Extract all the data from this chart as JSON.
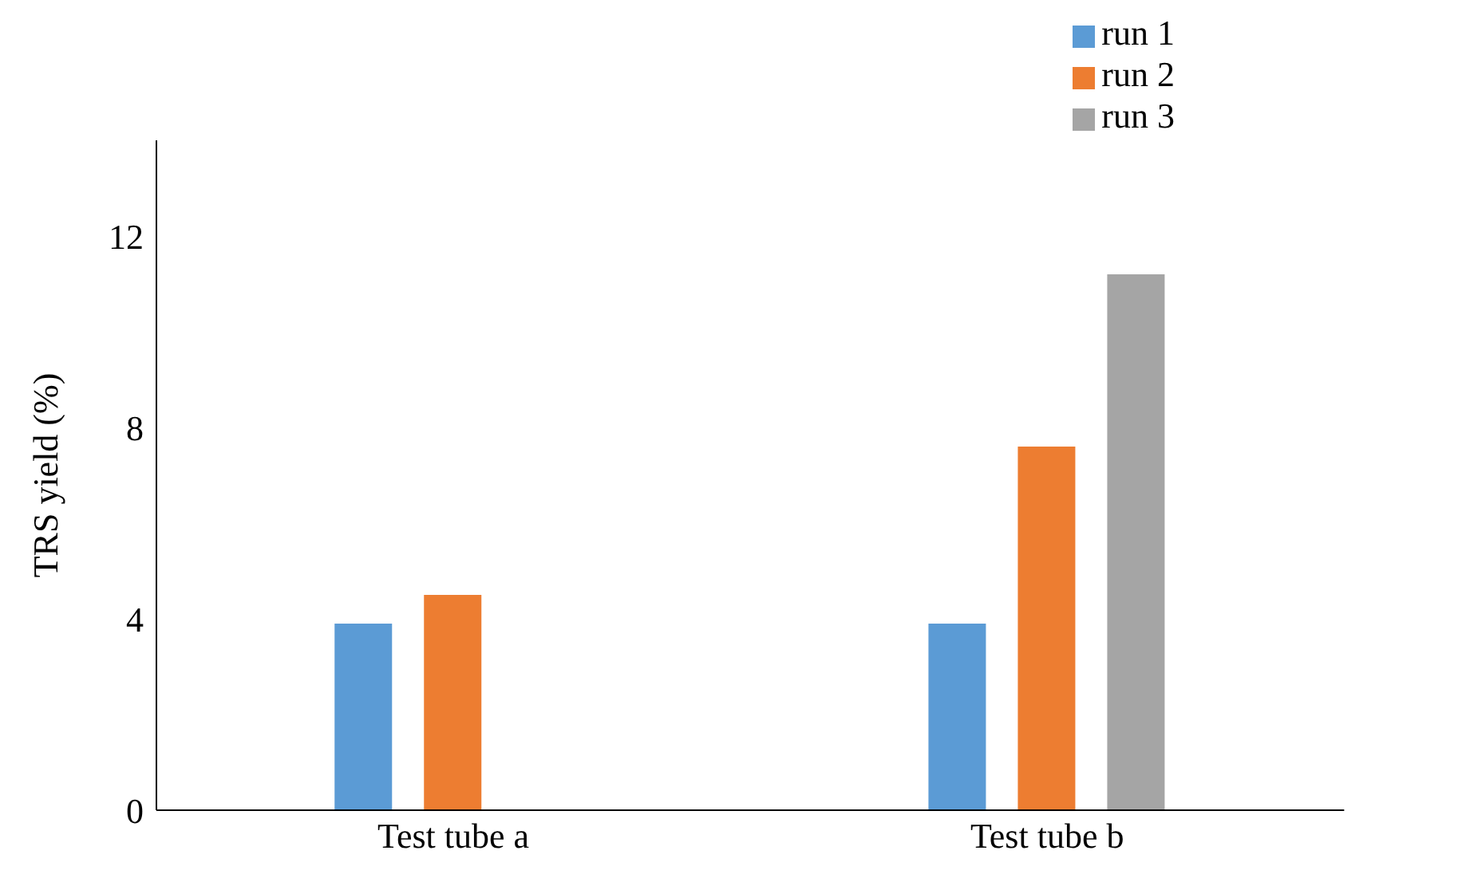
{
  "chart_data": {
    "type": "bar",
    "ylabel": "TRS yield (%)",
    "categories": [
      "Test tube a",
      "Test tube b"
    ],
    "series": [
      {
        "name": "run 1",
        "color": "#5b9bd5",
        "values": [
          3.9,
          3.9
        ]
      },
      {
        "name": "run 2",
        "color": "#ed7d31",
        "values": [
          4.5,
          7.6
        ]
      },
      {
        "name": "run 3",
        "color": "#a5a5a5",
        "values": [
          null,
          11.2
        ]
      }
    ],
    "ylim": [
      0,
      14
    ],
    "yticks": [
      0,
      4,
      8,
      12
    ],
    "grid": false,
    "legend": "top right"
  }
}
